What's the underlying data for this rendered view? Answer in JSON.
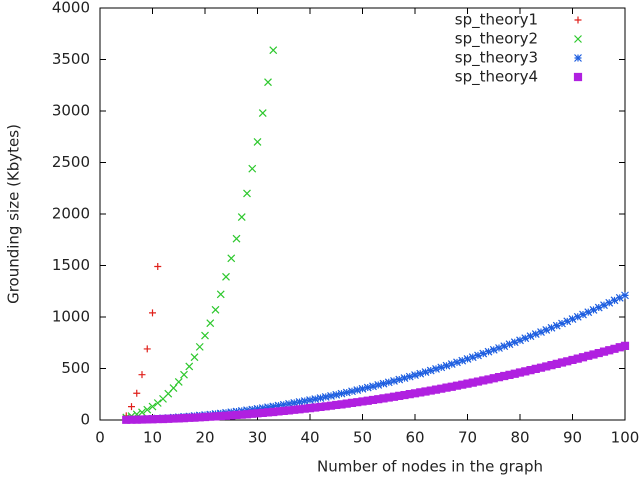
{
  "chart_data": {
    "type": "scatter",
    "x_label": "Number of nodes in the graph",
    "y_label": "Grounding size (Kbytes)",
    "xlim": [
      0,
      100
    ],
    "xticks": [
      0,
      10,
      20,
      30,
      40,
      50,
      60,
      70,
      80,
      90,
      100
    ],
    "ylim": [
      0,
      4000
    ],
    "yticks": [
      0,
      500,
      1000,
      1500,
      2000,
      2500,
      3000,
      3500,
      4000
    ],
    "legend": "top-right",
    "series": [
      {
        "name": "sp_theory1",
        "color": "#e0201b",
        "marker": "plus",
        "x": [
          5,
          6,
          7,
          8,
          9,
          10,
          11
        ],
        "values": [
          40,
          130,
          260,
          440,
          690,
          1040,
          1490
        ]
      },
      {
        "name": "sp_theory2",
        "color": "#2ec82e",
        "marker": "cross",
        "x": [
          5,
          6,
          7,
          8,
          9,
          10,
          11,
          12,
          13,
          14,
          15,
          16,
          17,
          18,
          19,
          20,
          21,
          22,
          23,
          24,
          25,
          26,
          27,
          28,
          29,
          30,
          31,
          32,
          33
        ],
        "values": [
          25,
          38,
          55,
          75,
          100,
          130,
          165,
          205,
          255,
          310,
          370,
          440,
          520,
          610,
          710,
          820,
          940,
          1070,
          1220,
          1390,
          1570,
          1760,
          1970,
          2200,
          2440,
          2700,
          2980,
          3280,
          3590
        ]
      },
      {
        "name": "sp_theory3",
        "color": "#1f5fe0",
        "marker": "star",
        "x": [
          5,
          6,
          7,
          8,
          9,
          10,
          11,
          12,
          13,
          14,
          15,
          16,
          17,
          18,
          19,
          20,
          21,
          22,
          23,
          24,
          25,
          26,
          27,
          28,
          29,
          30,
          31,
          32,
          33,
          34,
          35,
          36,
          37,
          38,
          39,
          40,
          41,
          42,
          43,
          44,
          45,
          46,
          47,
          48,
          49,
          50,
          51,
          52,
          53,
          54,
          55,
          56,
          57,
          58,
          59,
          60,
          61,
          62,
          63,
          64,
          65,
          66,
          67,
          68,
          69,
          70,
          71,
          72,
          73,
          74,
          75,
          76,
          77,
          78,
          79,
          80,
          81,
          82,
          83,
          84,
          85,
          86,
          87,
          88,
          89,
          90,
          91,
          92,
          93,
          94,
          95,
          96,
          97,
          98,
          99,
          100
        ],
        "values": [
          3,
          4,
          6,
          8,
          10,
          12,
          15,
          17,
          20,
          24,
          27,
          31,
          35,
          39,
          44,
          48,
          53,
          59,
          64,
          70,
          76,
          82,
          88,
          95,
          102,
          109,
          116,
          124,
          132,
          140,
          148,
          157,
          166,
          175,
          184,
          194,
          203,
          213,
          224,
          234,
          245,
          256,
          267,
          279,
          291,
          303,
          315,
          327,
          340,
          353,
          366,
          379,
          393,
          407,
          421,
          436,
          450,
          465,
          480,
          496,
          511,
          527,
          543,
          560,
          576,
          593,
          610,
          627,
          645,
          663,
          681,
          699,
          717,
          736,
          755,
          774,
          794,
          814,
          834,
          854,
          874,
          895,
          916,
          937,
          958,
          980,
          1002,
          1024,
          1047,
          1069,
          1092,
          1115,
          1138,
          1162,
          1186,
          1210
        ]
      },
      {
        "name": "sp_theory4",
        "color": "#b020e0",
        "marker": "square",
        "x": [
          5,
          6,
          7,
          8,
          9,
          10,
          11,
          12,
          13,
          14,
          15,
          16,
          17,
          18,
          19,
          20,
          21,
          22,
          23,
          24,
          25,
          26,
          27,
          28,
          29,
          30,
          31,
          32,
          33,
          34,
          35,
          36,
          37,
          38,
          39,
          40,
          41,
          42,
          43,
          44,
          45,
          46,
          47,
          48,
          49,
          50,
          51,
          52,
          53,
          54,
          55,
          56,
          57,
          58,
          59,
          60,
          61,
          62,
          63,
          64,
          65,
          66,
          67,
          68,
          69,
          70,
          71,
          72,
          73,
          74,
          75,
          76,
          77,
          78,
          79,
          80,
          81,
          82,
          83,
          84,
          85,
          86,
          87,
          88,
          89,
          90,
          91,
          92,
          93,
          94,
          95,
          96,
          97,
          98,
          99,
          100
        ],
        "values": [
          2,
          3,
          4,
          5,
          6,
          7,
          9,
          10,
          12,
          14,
          16,
          18,
          21,
          23,
          26,
          29,
          32,
          35,
          38,
          41,
          45,
          49,
          52,
          56,
          61,
          65,
          69,
          74,
          78,
          83,
          88,
          93,
          99,
          104,
          110,
          115,
          121,
          127,
          133,
          139,
          146,
          152,
          159,
          166,
          173,
          180,
          187,
          195,
          202,
          210,
          218,
          226,
          234,
          242,
          251,
          259,
          268,
          277,
          286,
          295,
          304,
          314,
          323,
          333,
          343,
          353,
          363,
          373,
          384,
          394,
          405,
          416,
          427,
          438,
          449,
          461,
          472,
          484,
          496,
          508,
          520,
          533,
          545,
          558,
          570,
          583,
          596,
          609,
          623,
          636,
          650,
          664,
          677,
          691,
          706,
          720
        ]
      }
    ]
  }
}
